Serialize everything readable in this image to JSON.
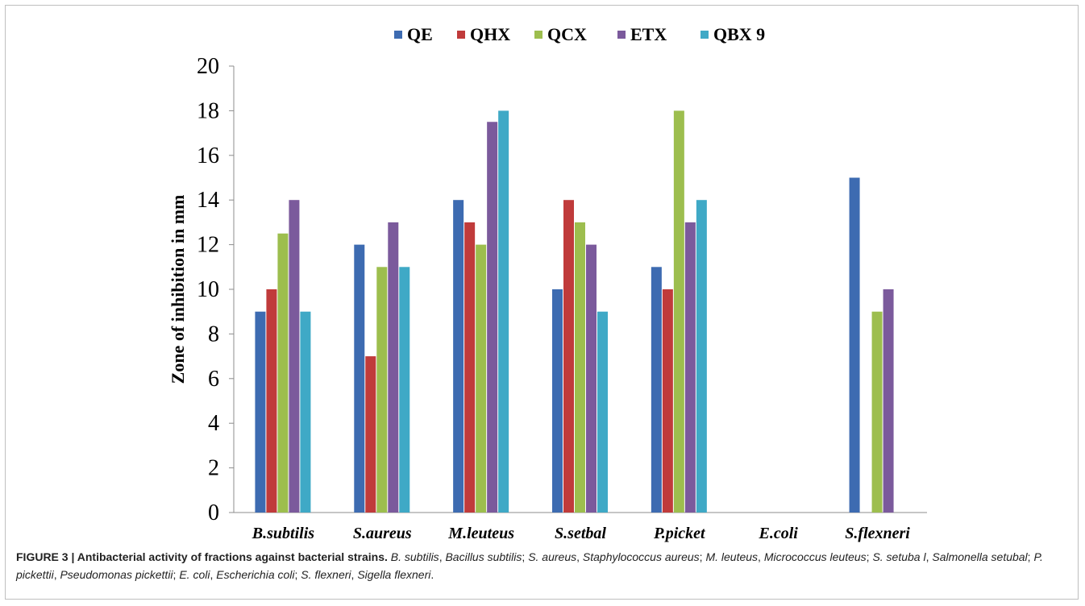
{
  "chart_data": {
    "type": "bar",
    "categories": [
      "B.subtilis",
      "S.aureus",
      "M.leuteus",
      "S.setbal",
      "P.picket",
      "E.coli",
      "S.flexneri"
    ],
    "series": [
      {
        "name": "QE",
        "color": "#3d6bb1",
        "values": [
          9,
          12,
          14,
          10,
          11,
          0,
          15
        ]
      },
      {
        "name": "QHX",
        "color": "#c03b3b",
        "values": [
          10,
          7,
          13,
          14,
          10,
          0,
          0
        ]
      },
      {
        "name": "QCX",
        "color": "#9dbe4e",
        "values": [
          12.5,
          11,
          12,
          13,
          18,
          0,
          9
        ]
      },
      {
        "name": "ETX",
        "color": "#7b5a9c",
        "values": [
          14,
          13,
          17.5,
          12,
          13,
          0,
          10
        ]
      },
      {
        "name": "QBX 9",
        "color": "#3fa9c6",
        "values": [
          9,
          11,
          18,
          9,
          14,
          0,
          0
        ]
      }
    ],
    "ylabel": "Zone of inhibition in mm",
    "ylim": [
      0,
      20
    ],
    "yticks": [
      "0",
      "2",
      "4",
      "6",
      "8",
      "10",
      "12",
      "14",
      "16",
      "18",
      "20"
    ],
    "grid": false,
    "legend_position": "top"
  },
  "caption": {
    "title": "FIGURE 3 | Antibacterial activity of fractions against bacterial strains.",
    "entries": [
      {
        "abbr": "B. subtilis",
        "full": "Bacillus subtilis"
      },
      {
        "abbr": "S. aureus",
        "full": "Staphylococcus aureus"
      },
      {
        "abbr": "M. leuteus",
        "full": "Micrococcus leuteus"
      },
      {
        "abbr": "S. setuba l",
        "full": "Salmonella setubal"
      },
      {
        "abbr": "P. pickettii",
        "full": "Pseudomonas pickettii"
      },
      {
        "abbr": "E. coli",
        "full": "Escherichia coli"
      },
      {
        "abbr": "S. flexneri",
        "full": "Sigella flexneri"
      }
    ]
  }
}
